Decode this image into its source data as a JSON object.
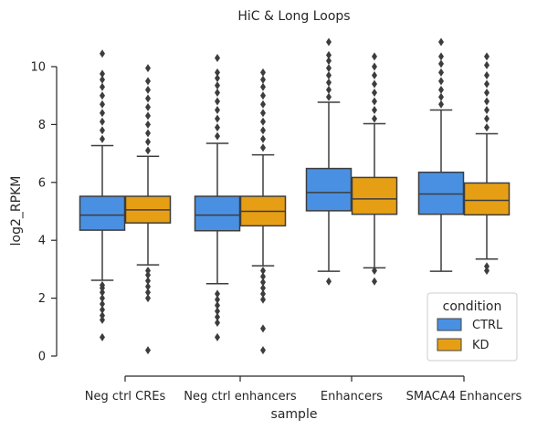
{
  "chart_data": {
    "type": "box",
    "title": "HiC & Long Loops",
    "xlabel": "sample",
    "ylabel": "log2_RPKM",
    "ylim": [
      0,
      10.9
    ],
    "yticks": [
      0,
      2,
      4,
      6,
      8,
      10
    ],
    "categories": [
      "Neg ctrl CREs",
      "Neg ctrl enhancers",
      "Enhancers",
      "SMACA4 Enhancers"
    ],
    "legend": {
      "title": "condition",
      "position": "lower-right"
    },
    "series": [
      {
        "name": "CTRL",
        "color": "#4A90E2",
        "boxes": [
          {
            "q1": 4.35,
            "median": 4.87,
            "q3": 5.52,
            "whisker_low": 2.62,
            "whisker_high": 7.27,
            "outliers": [
              0.65,
              1.25,
              1.4,
              1.6,
              1.8,
              2.0,
              2.2,
              2.35,
              2.45,
              7.5,
              7.8,
              8.1,
              8.4,
              8.7,
              9.0,
              9.3,
              9.55,
              9.75,
              10.45
            ]
          },
          {
            "q1": 4.33,
            "median": 4.87,
            "q3": 5.52,
            "whisker_low": 2.5,
            "whisker_high": 7.35,
            "outliers": [
              0.65,
              1.15,
              1.35,
              1.55,
              1.75,
              1.95,
              2.15,
              7.6,
              7.9,
              8.2,
              8.5,
              8.8,
              9.1,
              9.35,
              9.6,
              9.8,
              10.3
            ]
          },
          {
            "q1": 5.02,
            "median": 5.65,
            "q3": 6.48,
            "whisker_low": 2.93,
            "whisker_high": 8.77,
            "outliers": [
              2.58,
              8.95,
              9.2,
              9.45,
              9.7,
              9.95,
              10.2,
              10.4,
              10.85
            ]
          },
          {
            "q1": 4.9,
            "median": 5.6,
            "q3": 6.35,
            "whisker_low": 2.93,
            "whisker_high": 8.5,
            "outliers": [
              8.7,
              8.95,
              9.2,
              9.5,
              9.8,
              10.1,
              10.35,
              10.85
            ]
          }
        ]
      },
      {
        "name": "KD",
        "color": "#E69F15",
        "boxes": [
          {
            "q1": 4.6,
            "median": 5.05,
            "q3": 5.52,
            "whisker_low": 3.15,
            "whisker_high": 6.9,
            "outliers": [
              0.2,
              2.0,
              2.2,
              2.4,
              2.6,
              2.8,
              2.95,
              7.1,
              7.4,
              7.7,
              8.0,
              8.3,
              8.6,
              8.9,
              9.2,
              9.5,
              9.95
            ]
          },
          {
            "q1": 4.5,
            "median": 5.0,
            "q3": 5.52,
            "whisker_low": 3.12,
            "whisker_high": 6.95,
            "outliers": [
              0.2,
              0.95,
              1.95,
              2.15,
              2.35,
              2.55,
              2.75,
              2.95,
              7.2,
              7.5,
              7.8,
              8.1,
              8.4,
              8.7,
              9.0,
              9.3,
              9.55,
              9.8
            ]
          },
          {
            "q1": 4.9,
            "median": 5.43,
            "q3": 6.17,
            "whisker_low": 3.05,
            "whisker_high": 8.03,
            "outliers": [
              2.58,
              2.95,
              8.2,
              8.5,
              8.8,
              9.1,
              9.4,
              9.7,
              10.0,
              10.35
            ]
          },
          {
            "q1": 4.88,
            "median": 5.38,
            "q3": 5.98,
            "whisker_low": 3.35,
            "whisker_high": 7.68,
            "outliers": [
              2.95,
              3.1,
              7.9,
              8.2,
              8.5,
              8.8,
              9.1,
              9.4,
              9.7,
              10.05,
              10.35
            ]
          }
        ]
      }
    ]
  }
}
